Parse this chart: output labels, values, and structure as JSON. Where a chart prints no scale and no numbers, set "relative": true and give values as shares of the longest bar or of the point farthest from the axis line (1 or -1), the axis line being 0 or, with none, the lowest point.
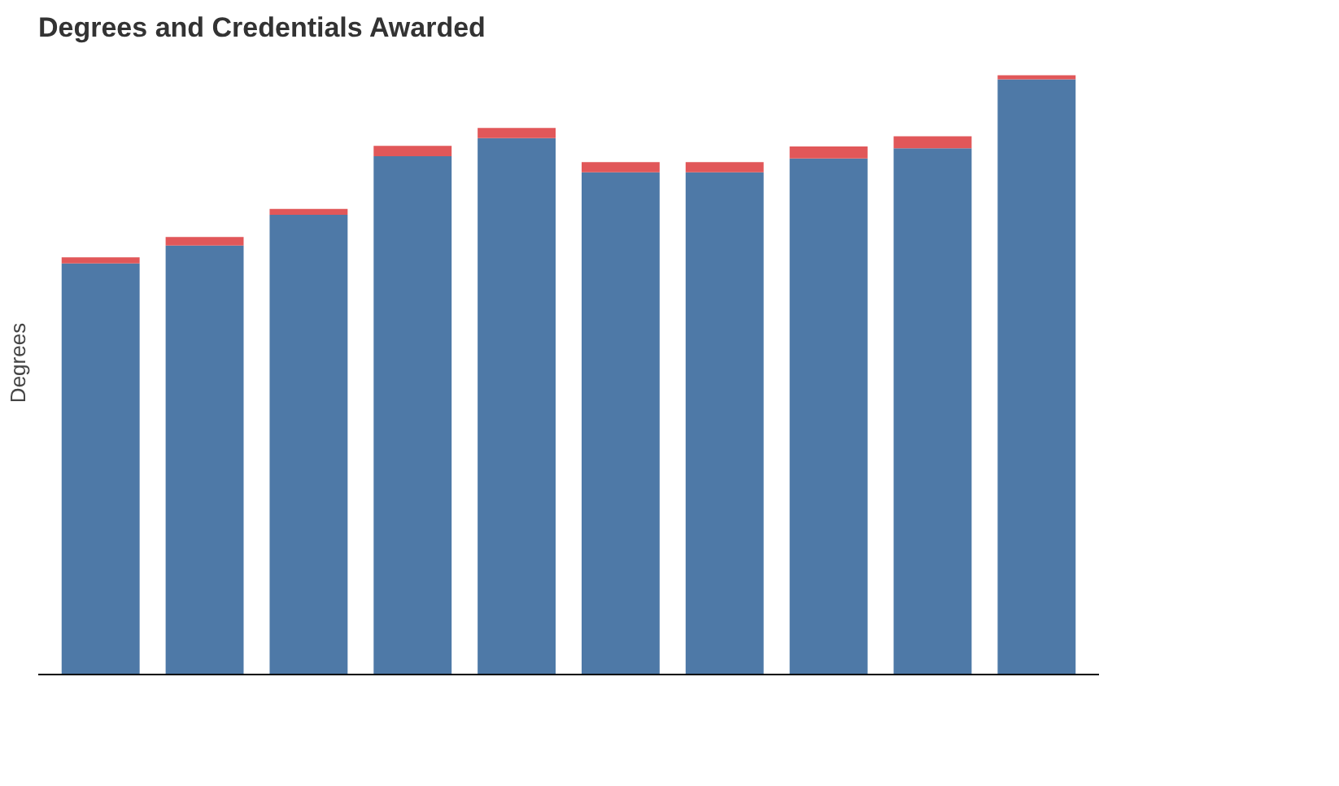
{
  "chart_data": {
    "type": "bar",
    "title": "Degrees and Credentials Awarded",
    "ylabel": "Degrees",
    "relative": true,
    "stacked": true,
    "categories": [
      null,
      null,
      null,
      null,
      null,
      null,
      null,
      null,
      null,
      null
    ],
    "series": [
      {
        "color": "#4e79a7",
        "values": [
          0.686,
          0.716,
          0.767,
          0.865,
          0.895,
          0.838,
          0.838,
          0.861,
          0.878,
          0.993
        ]
      },
      {
        "color": "#e15759",
        "values": [
          0.01,
          0.014,
          0.01,
          0.017,
          0.017,
          0.017,
          0.017,
          0.02,
          0.02,
          0.007
        ]
      }
    ],
    "grid": false
  }
}
